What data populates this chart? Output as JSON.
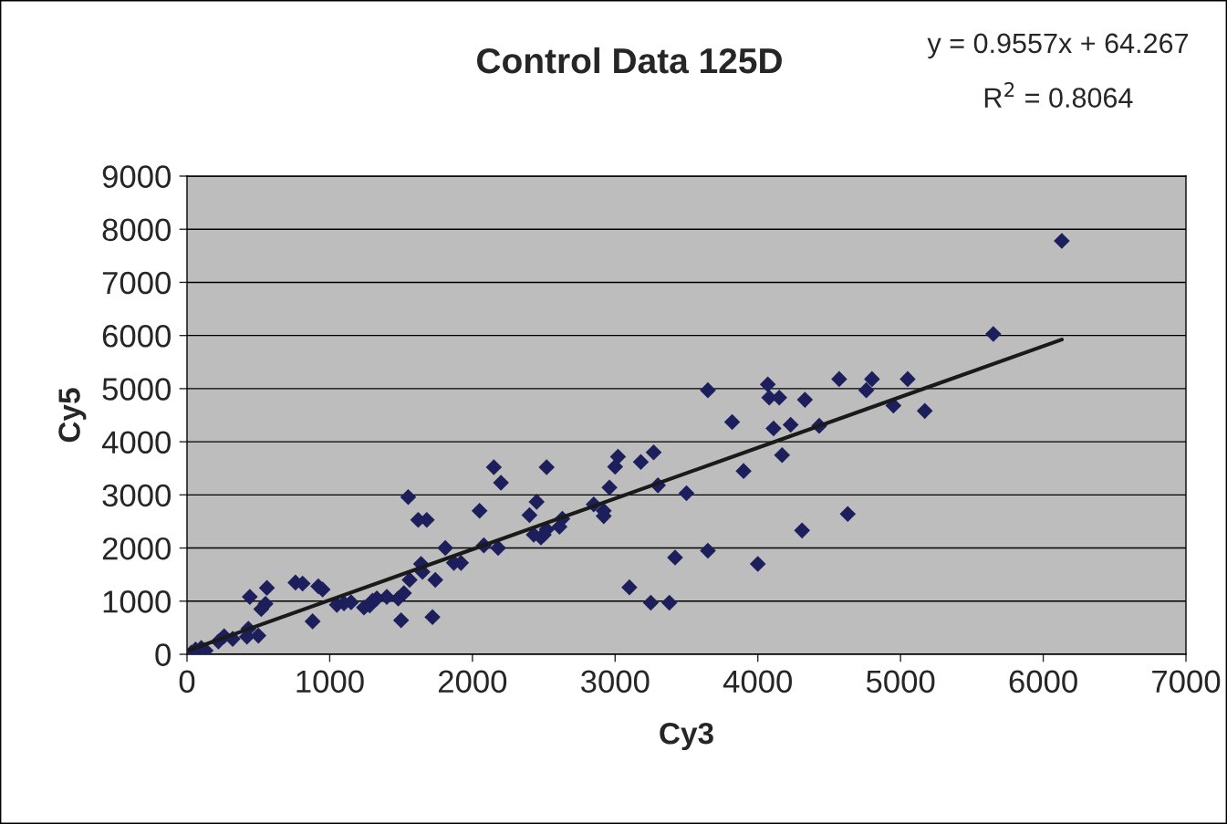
{
  "chart_data": {
    "type": "scatter",
    "title": "Control Data 125D",
    "xlabel": "Cy3",
    "ylabel": "Cy5",
    "annotations": [
      "y = 0.9557x + 64.267",
      "R$^{2}$ = 0.8064"
    ],
    "series": [
      {
        "color": "#1c1f5c",
        "marker": "diamond",
        "x": [
          30,
          60,
          100,
          130,
          220,
          260,
          320,
          440,
          430,
          420,
          500,
          520,
          550,
          560,
          760,
          810,
          880,
          920,
          950,
          1050,
          1100,
          1150,
          1240,
          1280,
          1300,
          1330,
          1400,
          1480,
          1500,
          1520,
          1560,
          1550,
          1620,
          1680,
          1650,
          1640,
          1720,
          1740,
          1810,
          1870,
          1920,
          2050,
          2080,
          2150,
          2180,
          2200,
          2400,
          2430,
          2450,
          2480,
          2500,
          2520,
          2520,
          2610,
          2630,
          2850,
          2920,
          2920,
          2960,
          3000,
          3020,
          3100,
          3180,
          3250,
          3270,
          3300,
          3380,
          3420,
          3500,
          3650,
          3650,
          3820,
          3900,
          4000,
          4070,
          4080,
          4110,
          4150,
          4170,
          4230,
          4310,
          4330,
          4430,
          4570,
          4630,
          4760,
          4800,
          4950,
          5050,
          5170,
          5650,
          6130
        ],
        "values": [
          30,
          90,
          120,
          70,
          240,
          340,
          290,
          1080,
          480,
          330,
          350,
          850,
          950,
          1250,
          1350,
          1330,
          620,
          1280,
          1220,
          930,
          960,
          980,
          880,
          920,
          1010,
          1050,
          1080,
          1050,
          640,
          1150,
          1400,
          2960,
          2530,
          2530,
          1550,
          1700,
          700,
          1400,
          2000,
          1720,
          1720,
          2700,
          2050,
          3520,
          2000,
          3230,
          2620,
          2250,
          2870,
          2200,
          2250,
          2350,
          3520,
          2400,
          2550,
          2820,
          2600,
          2700,
          3140,
          3530,
          3720,
          1260,
          3620,
          970,
          3800,
          3180,
          970,
          1820,
          3030,
          1950,
          4970,
          4370,
          3450,
          1700,
          5080,
          4830,
          4250,
          4830,
          3750,
          4320,
          2330,
          4790,
          4300,
          5180,
          2640,
          4970,
          5180,
          4680,
          5180,
          4580,
          6030,
          7780
        ]
      },
      {
        "type": "line",
        "color": "#1a1a1a",
        "marker": "none",
        "x": [
          0,
          6130
        ],
        "values": [
          64,
          5923
        ]
      }
    ],
    "xlim": [
      0,
      7000
    ],
    "xticks": [
      0,
      1000,
      2000,
      3000,
      4000,
      5000,
      6000,
      7000
    ],
    "ylim": [
      0,
      9000
    ],
    "yticks": [
      0,
      1000,
      2000,
      3000,
      4000,
      5000,
      6000,
      7000,
      8000,
      9000
    ],
    "grid": "y"
  }
}
